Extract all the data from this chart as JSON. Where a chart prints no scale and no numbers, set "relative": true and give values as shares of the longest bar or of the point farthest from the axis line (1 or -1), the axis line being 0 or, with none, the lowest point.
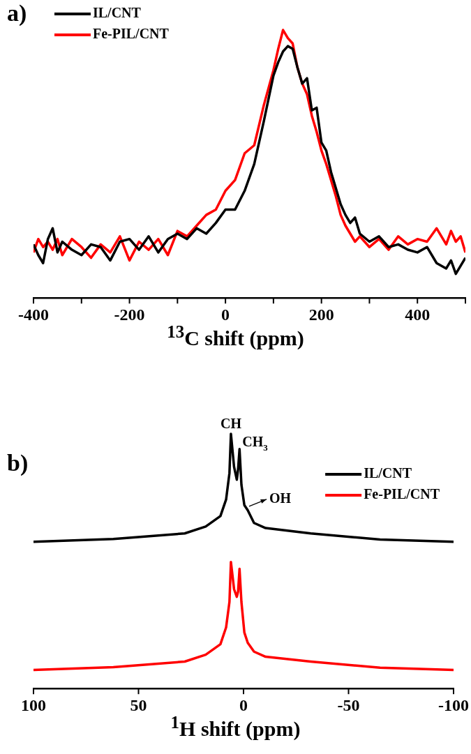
{
  "chart_data": [
    {
      "type": "line",
      "title": "a)",
      "xlabel": "$^{13}$C shift (ppm)",
      "relative": true,
      "legend": "top left",
      "xlim": [
        -400,
        500
      ],
      "xticks": [
        -400,
        {
          "value": -300,
          "label": null
        },
        -200,
        {
          "value": -100,
          "label": null
        },
        0,
        {
          "value": 100,
          "label": null
        },
        200,
        {
          "value": 300,
          "label": null
        },
        400,
        {
          "value": 500,
          "label": null
        }
      ],
      "series": [
        {
          "name": "IL/CNT",
          "color": "#000000",
          "x": [
            -400,
            -390,
            -380,
            -370,
            -360,
            -350,
            -340,
            -320,
            -300,
            -280,
            -260,
            -240,
            -220,
            -200,
            -180,
            -160,
            -140,
            -120,
            -100,
            -80,
            -60,
            -40,
            -20,
            0,
            20,
            40,
            60,
            80,
            100,
            110,
            120,
            130,
            140,
            150,
            160,
            170,
            180,
            190,
            200,
            210,
            220,
            230,
            240,
            250,
            260,
            270,
            280,
            300,
            320,
            340,
            360,
            380,
            400,
            420,
            440,
            460,
            470,
            480,
            490,
            500
          ],
          "values": [
            0.2,
            0.16,
            0.13,
            0.22,
            0.26,
            0.17,
            0.21,
            0.18,
            0.16,
            0.2,
            0.19,
            0.14,
            0.21,
            0.22,
            0.18,
            0.23,
            0.17,
            0.22,
            0.24,
            0.22,
            0.26,
            0.24,
            0.28,
            0.33,
            0.33,
            0.4,
            0.5,
            0.66,
            0.83,
            0.88,
            0.92,
            0.94,
            0.93,
            0.86,
            0.8,
            0.82,
            0.7,
            0.71,
            0.58,
            0.55,
            0.47,
            0.41,
            0.35,
            0.31,
            0.28,
            0.3,
            0.24,
            0.21,
            0.23,
            0.19,
            0.2,
            0.18,
            0.17,
            0.19,
            0.13,
            0.11,
            0.14,
            0.09,
            0.12,
            0.15
          ]
        },
        {
          "name": "Fe-PIL/CNT",
          "color": "#ff0000",
          "x": [
            -400,
            -390,
            -380,
            -370,
            -360,
            -350,
            -340,
            -320,
            -300,
            -280,
            -260,
            -240,
            -220,
            -200,
            -180,
            -160,
            -140,
            -120,
            -100,
            -80,
            -60,
            -40,
            -20,
            0,
            20,
            40,
            60,
            80,
            100,
            110,
            120,
            130,
            140,
            150,
            160,
            170,
            180,
            190,
            200,
            210,
            220,
            230,
            240,
            250,
            260,
            270,
            280,
            300,
            320,
            340,
            360,
            380,
            400,
            420,
            440,
            460,
            470,
            480,
            490,
            500
          ],
          "values": [
            0.17,
            0.22,
            0.19,
            0.21,
            0.18,
            0.22,
            0.16,
            0.22,
            0.19,
            0.15,
            0.2,
            0.17,
            0.23,
            0.14,
            0.21,
            0.18,
            0.22,
            0.16,
            0.25,
            0.23,
            0.27,
            0.31,
            0.33,
            0.4,
            0.44,
            0.54,
            0.57,
            0.72,
            0.85,
            0.93,
            1.0,
            0.97,
            0.95,
            0.86,
            0.8,
            0.76,
            0.68,
            0.62,
            0.55,
            0.5,
            0.44,
            0.38,
            0.31,
            0.27,
            0.24,
            0.21,
            0.23,
            0.19,
            0.22,
            0.18,
            0.23,
            0.2,
            0.22,
            0.21,
            0.26,
            0.2,
            0.25,
            0.21,
            0.23,
            0.17
          ]
        }
      ]
    },
    {
      "type": "line",
      "title": "b)",
      "xlabel": "$^{1}$H shift (ppm)",
      "relative": true,
      "legend": "top right",
      "xlim": [
        100,
        -100
      ],
      "xticks": [
        100,
        50,
        0,
        -50,
        -100
      ],
      "annotations": [
        {
          "text": "CH",
          "x": 6,
          "y": 1
        },
        {
          "text": "CH$_{3}$",
          "x": 1.9,
          "y": 0.94
        },
        {
          "text": "OH",
          "x": -1,
          "y": 0.71
        }
      ],
      "series": [
        {
          "name": "IL/CNT",
          "color": "#000000",
          "x": [
            100,
            62,
            28,
            18,
            11,
            8.3,
            6.7,
            6,
            4.5,
            3.2,
            2.6,
            1.9,
            1,
            -0.4,
            -2,
            -5,
            -10.5,
            -32,
            -65,
            -100
          ],
          "values": [
            0.576,
            0.587,
            0.609,
            0.636,
            0.677,
            0.742,
            0.846,
            1,
            0.87,
            0.82,
            0.86,
            0.94,
            0.8,
            0.72,
            0.7,
            0.65,
            0.63,
            0.609,
            0.585,
            0.576
          ]
        },
        {
          "name": "Fe-PIL/CNT",
          "color": "#ff0000",
          "x": [
            100,
            62,
            28,
            18,
            11,
            8.3,
            6.7,
            6,
            4.5,
            3.2,
            2.6,
            1.9,
            1,
            -0.4,
            -2,
            -5,
            -10.5,
            -32,
            -65,
            -100
          ],
          "values": [
            0.073,
            0.084,
            0.106,
            0.133,
            0.174,
            0.24,
            0.34,
            0.497,
            0.39,
            0.36,
            0.38,
            0.47,
            0.34,
            0.22,
            0.18,
            0.145,
            0.125,
            0.106,
            0.082,
            0.073
          ]
        }
      ]
    }
  ]
}
